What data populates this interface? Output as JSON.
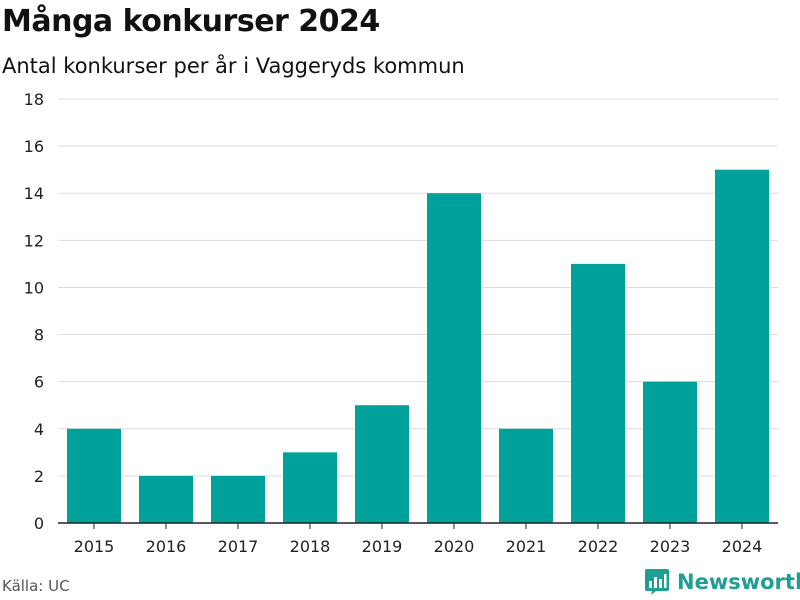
{
  "title": "Många konkurser 2024",
  "subtitle": "Antal konkurser per år i Vaggeryds kommun",
  "source": "Källa: UC",
  "brand": "Newsworthy",
  "colors": {
    "bar": "#00a19a",
    "brand": "#1f9f93",
    "grid": "#dddddd",
    "axis": "#222222"
  },
  "icons": {
    "brand_logo": "bar-chart-logo-icon"
  },
  "chart_data": {
    "type": "bar",
    "title": "Många konkurser 2024",
    "subtitle": "Antal konkurser per år i Vaggeryds kommun",
    "xlabel": "",
    "ylabel": "",
    "categories": [
      "2015",
      "2016",
      "2017",
      "2018",
      "2019",
      "2020",
      "2021",
      "2022",
      "2023",
      "2024"
    ],
    "values": [
      4,
      2,
      2,
      3,
      5,
      14,
      4,
      11,
      6,
      15
    ],
    "ylim": [
      0,
      18
    ],
    "yticks": [
      0,
      2,
      4,
      6,
      8,
      10,
      12,
      14,
      16,
      18
    ],
    "grid": true,
    "legend": "none"
  }
}
